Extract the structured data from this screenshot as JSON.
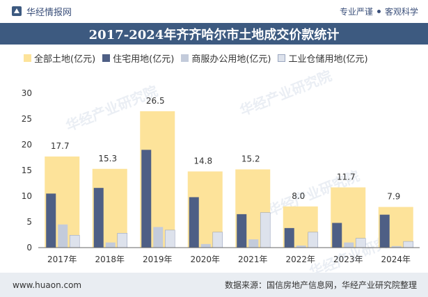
{
  "header": {
    "brand": "华经情报网",
    "tagline_left": "专业严谨",
    "tagline_right": "客观科学"
  },
  "watermark": "华经产业研究院",
  "colors": {
    "total": "#fde39a",
    "residential": "#4e5f85",
    "commercial": "#c3cbdb",
    "industrial": "#dde2ec",
    "title_bg": "#3d5a80"
  },
  "chart_data": {
    "type": "bar",
    "title": "2017-2024年齐齐哈尔市土地成交价款统计",
    "categories": [
      "2017年",
      "2018年",
      "2019年",
      "2020年",
      "2021年",
      "2022年",
      "2023年",
      "2024年"
    ],
    "series": [
      {
        "name": "全部土地(亿元)",
        "values": [
          17.7,
          15.3,
          26.5,
          14.8,
          15.2,
          8.0,
          11.7,
          7.9
        ],
        "labels": [
          "17.7",
          "15.3",
          "26.5",
          "14.8",
          "15.2",
          "8.0",
          "11.7",
          "7.9"
        ]
      },
      {
        "name": "住宅用地(亿元)",
        "values": [
          10.5,
          11.6,
          19.0,
          9.8,
          6.5,
          3.8,
          4.8,
          6.4
        ]
      },
      {
        "name": "商服办公用地(亿元)",
        "values": [
          4.5,
          1.0,
          4.0,
          0.7,
          1.6,
          0.4,
          1.0,
          0.3
        ]
      },
      {
        "name": "工业仓储用地(亿元)",
        "values": [
          2.4,
          2.8,
          3.4,
          3.0,
          6.8,
          3.0,
          1.8,
          1.2
        ]
      }
    ],
    "yticks": [
      "0",
      "5",
      "10",
      "15",
      "20",
      "25",
      "30"
    ],
    "ylim": [
      0,
      30
    ],
    "xlabel": "",
    "ylabel": "",
    "legend_position": "top-left",
    "grid": false
  },
  "footer": {
    "website": "www.huaon.com",
    "source": "数据来源：国信房地产信息网，华经产业研究院整理"
  }
}
